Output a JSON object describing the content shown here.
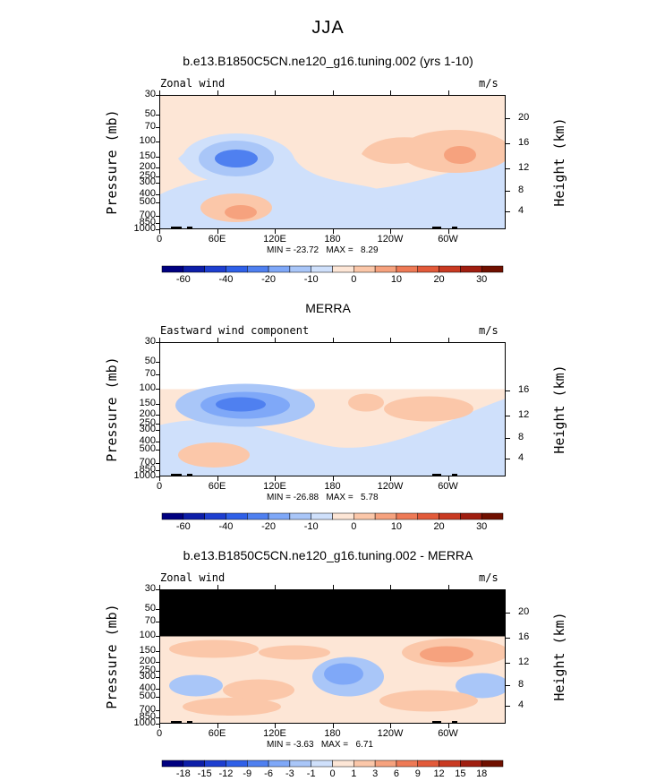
{
  "title": "JJA",
  "units": "m/s",
  "y_axis_label": "Pressure (mb)",
  "y2_axis_label": "Height (km)",
  "pressure_ticks": [
    "30",
    "50",
    "70",
    "100",
    "150",
    "200",
    "250",
    "300",
    "400",
    "500",
    "700",
    "850",
    "1000"
  ],
  "x_ticks": [
    "0",
    "60E",
    "120E",
    "180",
    "120W",
    "60W"
  ],
  "panels": [
    {
      "title": "b.e13.B1850C5CN.ne120_g16.tuning.002 (yrs 1-10)",
      "subtitle": "Zonal wind",
      "height_ticks": [
        "20",
        "16",
        "12",
        "8",
        "4"
      ],
      "minmax": "MIN = -23.72   MAX =   8.29",
      "colorbar_labels": [
        "-60",
        "-40",
        "-20",
        "-10",
        "0",
        "10",
        "20",
        "30"
      ]
    },
    {
      "title": "MERRA",
      "subtitle": "Eastward wind component",
      "height_ticks": [
        "16",
        "12",
        "8",
        "4"
      ],
      "minmax": "MIN = -26.88   MAX =   5.78",
      "colorbar_labels": [
        "-60",
        "-40",
        "-20",
        "-10",
        "0",
        "10",
        "20",
        "30"
      ]
    },
    {
      "title": "b.e13.B1850C5CN.ne120_g16.tuning.002 - MERRA",
      "subtitle": "Zonal wind",
      "height_ticks": [
        "20",
        "16",
        "12",
        "8",
        "4"
      ],
      "minmax": "MIN = -3.63   MAX =   6.71",
      "colorbar_labels": [
        "-18",
        "-15",
        "-12",
        "-9",
        "-6",
        "-3",
        "-1",
        "0",
        "1",
        "3",
        "6",
        "9",
        "12",
        "15",
        "18"
      ]
    }
  ],
  "colors": {
    "palette": [
      "#000080",
      "#0d1ea8",
      "#1e3fd0",
      "#2f60e8",
      "#4f80f0",
      "#7fa8f8",
      "#a9c6f8",
      "#cfe0fb",
      "#fde6d6",
      "#fbc7a9",
      "#f6a27e",
      "#ee7a56",
      "#e25a3a",
      "#c93a22",
      "#a01e10",
      "#701000"
    ],
    "neutral": "#fde6d6",
    "missing": "#000000"
  },
  "chart_data": [
    {
      "type": "heatmap",
      "title": "b.e13.B1850C5CN.ne120_g16.tuning.002 (yrs 1-10)",
      "variable": "Zonal wind",
      "units": "m/s",
      "xlabel": "",
      "ylabel": "Pressure (mb)",
      "y2label": "Height (km)",
      "x_ticks": [
        "0",
        "60E",
        "120E",
        "180",
        "120W",
        "60W"
      ],
      "y_ticks": [
        30,
        50,
        70,
        100,
        150,
        200,
        250,
        300,
        400,
        500,
        700,
        850,
        1000
      ],
      "y_scale": "log",
      "min": -23.72,
      "max": 8.29,
      "contour_levels": [
        -60,
        -40,
        -20,
        -10,
        0,
        10,
        20,
        30
      ]
    },
    {
      "type": "heatmap",
      "title": "MERRA",
      "variable": "Eastward wind component",
      "units": "m/s",
      "xlabel": "",
      "ylabel": "Pressure (mb)",
      "y2label": "Height (km)",
      "x_ticks": [
        "0",
        "60E",
        "120E",
        "180",
        "120W",
        "60W"
      ],
      "y_ticks": [
        30,
        50,
        70,
        100,
        150,
        200,
        250,
        300,
        400,
        500,
        700,
        850,
        1000
      ],
      "y_scale": "log",
      "min": -26.88,
      "max": 5.78,
      "contour_levels": [
        -60,
        -40,
        -20,
        -10,
        0,
        10,
        20,
        30
      ]
    },
    {
      "type": "heatmap",
      "title": "b.e13.B1850C5CN.ne120_g16.tuning.002 - MERRA",
      "variable": "Zonal wind",
      "units": "m/s",
      "xlabel": "",
      "ylabel": "Pressure (mb)",
      "y2label": "Height (km)",
      "x_ticks": [
        "0",
        "60E",
        "120E",
        "180",
        "120W",
        "60W"
      ],
      "y_ticks": [
        30,
        50,
        70,
        100,
        150,
        200,
        250,
        300,
        400,
        500,
        700,
        850,
        1000
      ],
      "y_scale": "log",
      "min": -3.63,
      "max": 6.71,
      "contour_levels": [
        -18,
        -15,
        -12,
        -9,
        -6,
        -3,
        -1,
        0,
        1,
        3,
        6,
        9,
        12,
        15,
        18
      ]
    }
  ]
}
